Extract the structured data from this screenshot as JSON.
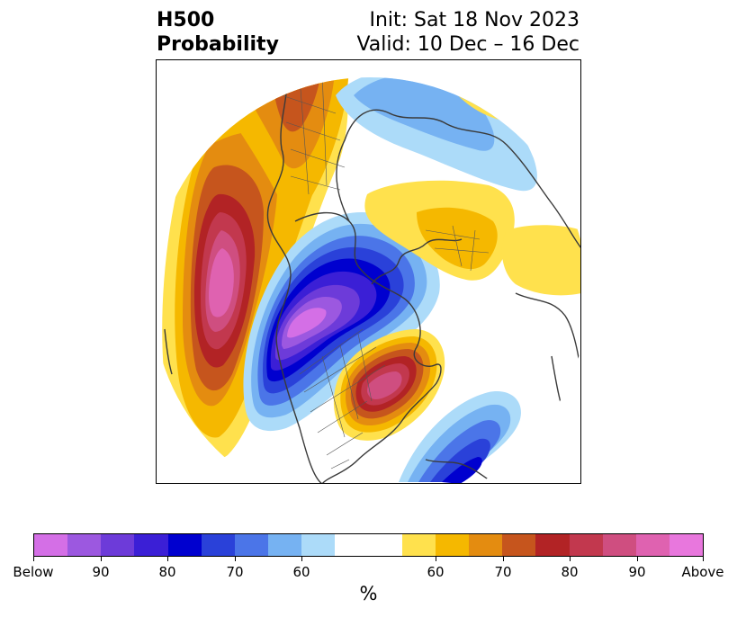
{
  "title": {
    "left_line1": "H500",
    "left_line2": "Probability",
    "right_line1": "Init: Sat 18 Nov 2023",
    "right_line2": "Valid: 10 Dec – 16 Dec"
  },
  "colorbar": {
    "colors": [
      "#d46fe6",
      "#9c58e0",
      "#6d3bd9",
      "#3b1fd6",
      "#0000cf",
      "#2a41d9",
      "#4b75e8",
      "#76b2f2",
      "#acdbf9",
      "#ffffff",
      "#ffffff",
      "#ffe14d",
      "#f5b800",
      "#e48c10",
      "#c6551d",
      "#b22325",
      "#c2384e",
      "#cf4e80",
      "#df62b0",
      "#e877dd"
    ],
    "labels": [
      "Below",
      "90",
      "80",
      "70",
      "60",
      "60",
      "70",
      "80",
      "90",
      "Above"
    ],
    "unit": "%"
  },
  "map": {
    "fill_colors": {
      "below_60": "#acdbf9",
      "below_65": "#76b2f2",
      "below_70": "#4b75e8",
      "below_75": "#2a41d9",
      "below_80": "#0000cf",
      "below_85": "#3b1fd6",
      "below_90": "#6d3bd9",
      "below_95": "#9c58e0",
      "below_max": "#d46fe6",
      "above_60": "#ffe14d",
      "above_65": "#f5b800",
      "above_70": "#e48c10",
      "above_75": "#c6551d",
      "above_80": "#b22325",
      "above_85": "#c2384e",
      "above_90": "#cf4e80",
      "above_95": "#df62b0",
      "above_max": "#e877dd"
    },
    "projection": "north-polar stereographic",
    "coastline_color": "#3a3a3a"
  }
}
